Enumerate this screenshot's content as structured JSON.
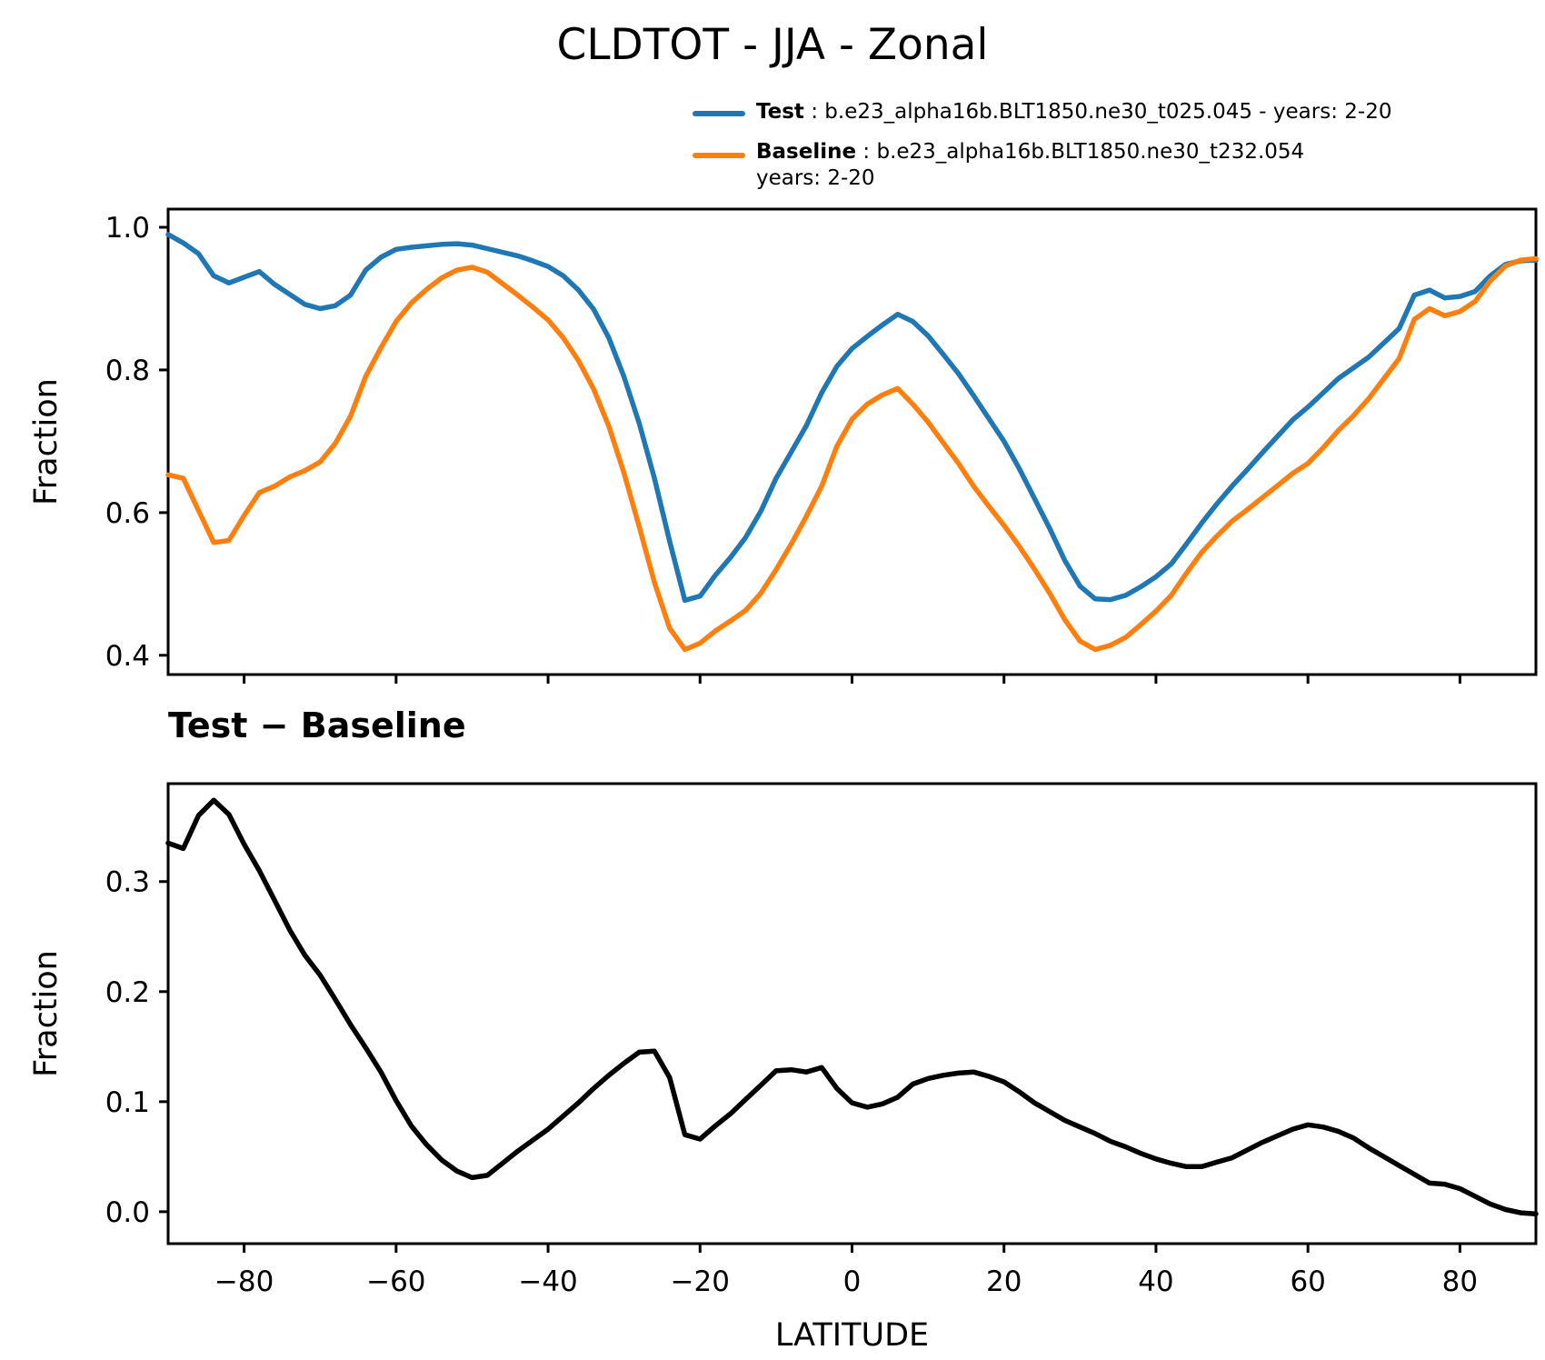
{
  "title": "CLDTOT - JJA - Zonal",
  "legend": {
    "test_label": "Test",
    "test_rest": " : b.e23_alpha16b.BLT1850.ne30_t025.045 - years: 2-20",
    "baseline_label": "Baseline",
    "baseline_rest": " : b.e23_alpha16b.BLT1850.ne30_t232.054",
    "baseline_wrap": "years: 2-20"
  },
  "subtitle": "Test − Baseline",
  "chart_data": [
    {
      "type": "line",
      "panel": "top",
      "ylabel": "Fraction",
      "ylim": [
        0.373,
        1.0255
      ],
      "yticks": [
        0.4,
        0.6,
        0.8,
        1.0
      ],
      "ytick_labels": [
        "0.4",
        "0.6",
        "0.8",
        "1.0"
      ],
      "xlim": [
        -90,
        90
      ],
      "xticks": [
        -80,
        -60,
        -40,
        -20,
        0,
        20,
        40,
        60,
        80
      ],
      "grid": false,
      "legend_position": "upper right outside",
      "x": [
        -90,
        -88,
        -86,
        -84,
        -82,
        -80,
        -78,
        -76,
        -74,
        -72,
        -70,
        -68,
        -66,
        -64,
        -62,
        -60,
        -58,
        -56,
        -54,
        -52,
        -50,
        -48,
        -46,
        -44,
        -42,
        -40,
        -38,
        -36,
        -34,
        -32,
        -30,
        -28,
        -26,
        -24,
        -22,
        -20,
        -18,
        -16,
        -14,
        -12,
        -10,
        -8,
        -6,
        -4,
        -2,
        0,
        2,
        4,
        6,
        8,
        10,
        12,
        14,
        16,
        18,
        20,
        22,
        24,
        26,
        28,
        30,
        32,
        34,
        36,
        38,
        40,
        42,
        44,
        46,
        48,
        50,
        52,
        54,
        56,
        58,
        60,
        62,
        64,
        66,
        68,
        70,
        72,
        74,
        76,
        78,
        80,
        82,
        84,
        86,
        88,
        90
      ],
      "series": [
        {
          "name": "Test",
          "color": "#1f77b4",
          "values": [
            0.99,
            0.978,
            0.963,
            0.932,
            0.922,
            0.93,
            0.938,
            0.92,
            0.906,
            0.892,
            0.886,
            0.89,
            0.905,
            0.94,
            0.958,
            0.969,
            0.972,
            0.974,
            0.976,
            0.977,
            0.975,
            0.97,
            0.965,
            0.96,
            0.953,
            0.945,
            0.932,
            0.912,
            0.885,
            0.845,
            0.79,
            0.725,
            0.648,
            0.56,
            0.477,
            0.483,
            0.512,
            0.537,
            0.565,
            0.602,
            0.648,
            0.685,
            0.722,
            0.768,
            0.805,
            0.83,
            0.847,
            0.863,
            0.878,
            0.868,
            0.848,
            0.822,
            0.795,
            0.764,
            0.732,
            0.7,
            0.662,
            0.62,
            0.578,
            0.533,
            0.497,
            0.479,
            0.478,
            0.484,
            0.496,
            0.51,
            0.528,
            0.556,
            0.585,
            0.612,
            0.637,
            0.66,
            0.684,
            0.707,
            0.73,
            0.748,
            0.768,
            0.788,
            0.803,
            0.818,
            0.838,
            0.858,
            0.905,
            0.912,
            0.901,
            0.903,
            0.91,
            0.932,
            0.948,
            0.953,
            0.954
          ]
        },
        {
          "name": "Baseline",
          "color": "#ff7f0e",
          "values": [
            0.653,
            0.648,
            0.603,
            0.558,
            0.561,
            0.596,
            0.628,
            0.637,
            0.65,
            0.659,
            0.671,
            0.697,
            0.735,
            0.791,
            0.831,
            0.868,
            0.894,
            0.913,
            0.929,
            0.94,
            0.944,
            0.937,
            0.921,
            0.905,
            0.888,
            0.87,
            0.845,
            0.813,
            0.773,
            0.721,
            0.655,
            0.58,
            0.502,
            0.438,
            0.408,
            0.417,
            0.434,
            0.448,
            0.463,
            0.487,
            0.52,
            0.556,
            0.595,
            0.637,
            0.693,
            0.731,
            0.752,
            0.765,
            0.774,
            0.752,
            0.727,
            0.698,
            0.669,
            0.637,
            0.609,
            0.582,
            0.553,
            0.521,
            0.487,
            0.45,
            0.42,
            0.408,
            0.414,
            0.425,
            0.443,
            0.462,
            0.484,
            0.515,
            0.544,
            0.567,
            0.588,
            0.604,
            0.621,
            0.638,
            0.655,
            0.669,
            0.691,
            0.715,
            0.736,
            0.76,
            0.788,
            0.816,
            0.871,
            0.886,
            0.876,
            0.882,
            0.896,
            0.925,
            0.946,
            0.954,
            0.956
          ]
        }
      ]
    },
    {
      "type": "line",
      "panel": "bottom",
      "title": "Test − Baseline",
      "ylabel": "Fraction",
      "xlabel": "LATITUDE",
      "ylim": [
        -0.029,
        0.389
      ],
      "yticks": [
        0.0,
        0.1,
        0.2,
        0.3
      ],
      "ytick_labels": [
        "0.0",
        "0.1",
        "0.2",
        "0.3"
      ],
      "xlim": [
        -90,
        90
      ],
      "xticks": [
        -80,
        -60,
        -40,
        -20,
        0,
        20,
        40,
        60,
        80
      ],
      "xtick_labels": [
        "−80",
        "−60",
        "−40",
        "−20",
        "0",
        "20",
        "40",
        "60",
        "80"
      ],
      "grid": false,
      "x": [
        -90,
        -88,
        -86,
        -84,
        -82,
        -80,
        -78,
        -76,
        -74,
        -72,
        -70,
        -68,
        -66,
        -64,
        -62,
        -60,
        -58,
        -56,
        -54,
        -52,
        -50,
        -48,
        -46,
        -44,
        -42,
        -40,
        -38,
        -36,
        -34,
        -32,
        -30,
        -28,
        -26,
        -24,
        -22,
        -20,
        -18,
        -16,
        -14,
        -12,
        -10,
        -8,
        -6,
        -4,
        -2,
        0,
        2,
        4,
        6,
        8,
        10,
        12,
        14,
        16,
        18,
        20,
        22,
        24,
        26,
        28,
        30,
        32,
        34,
        36,
        38,
        40,
        42,
        44,
        46,
        48,
        50,
        52,
        54,
        56,
        58,
        60,
        62,
        64,
        66,
        68,
        70,
        72,
        74,
        76,
        78,
        80,
        82,
        84,
        86,
        88,
        90
      ],
      "series": [
        {
          "name": "Test minus Baseline",
          "color": "#000000",
          "values": [
            0.335,
            0.33,
            0.36,
            0.374,
            0.361,
            0.334,
            0.31,
            0.283,
            0.256,
            0.233,
            0.215,
            0.193,
            0.17,
            0.149,
            0.127,
            0.101,
            0.078,
            0.061,
            0.047,
            0.037,
            0.031,
            0.033,
            0.044,
            0.055,
            0.065,
            0.075,
            0.087,
            0.099,
            0.112,
            0.124,
            0.135,
            0.145,
            0.146,
            0.122,
            0.07,
            0.066,
            0.078,
            0.089,
            0.102,
            0.115,
            0.128,
            0.129,
            0.127,
            0.131,
            0.112,
            0.099,
            0.095,
            0.098,
            0.104,
            0.116,
            0.121,
            0.124,
            0.126,
            0.127,
            0.123,
            0.118,
            0.109,
            0.099,
            0.091,
            0.083,
            0.077,
            0.071,
            0.064,
            0.059,
            0.053,
            0.048,
            0.044,
            0.041,
            0.041,
            0.045,
            0.049,
            0.056,
            0.063,
            0.069,
            0.075,
            0.079,
            0.077,
            0.073,
            0.067,
            0.058,
            0.05,
            0.042,
            0.034,
            0.026,
            0.025,
            0.021,
            0.014,
            0.007,
            0.002,
            -0.001,
            -0.002
          ]
        }
      ]
    }
  ]
}
